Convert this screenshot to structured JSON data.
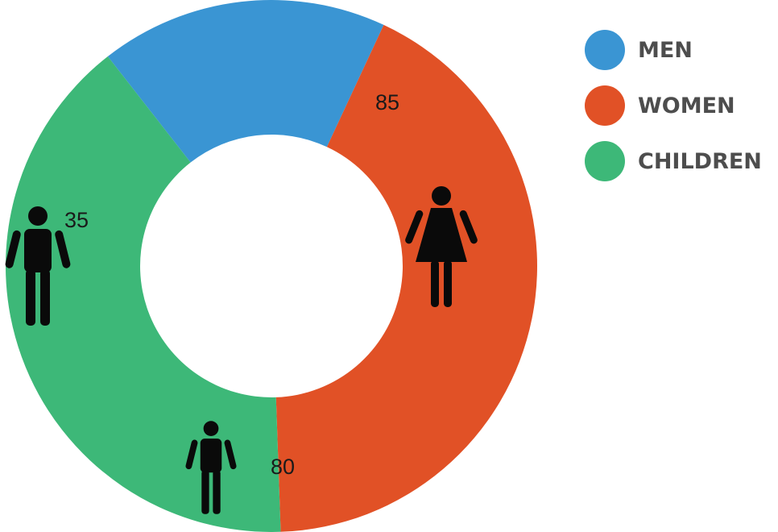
{
  "chart_data": {
    "type": "pie",
    "subtype": "donut",
    "categories": [
      "MEN",
      "WOMEN",
      "CHILDREN"
    ],
    "values": [
      35,
      85,
      80
    ],
    "colors": [
      "#3a95d3",
      "#e15126",
      "#3db878"
    ],
    "icons": [
      "man-icon",
      "woman-icon",
      "child-icon"
    ],
    "legend_position": "top-right"
  }
}
